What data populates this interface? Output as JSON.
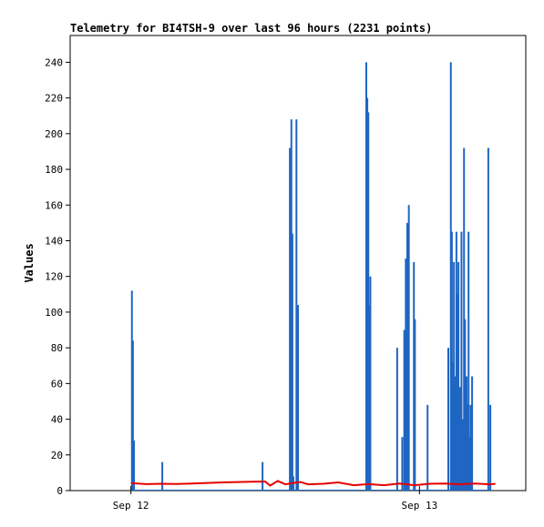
{
  "chart_data": {
    "type": "line",
    "title": "Telemetry for BI4TSH-9 over last 96 hours (2231 points)",
    "ylabel": "Values",
    "xlabel": "",
    "ylim": [
      0,
      255
    ],
    "yticks": [
      0,
      20,
      40,
      60,
      80,
      100,
      120,
      140,
      160,
      180,
      200,
      220,
      240
    ],
    "xlim": [
      -12,
      78
    ],
    "x_unit": "hours since Sep 12 00:00",
    "xticks": [
      {
        "x": 0,
        "label": "Sep 12"
      },
      {
        "x": 57,
        "label": "Sep 13"
      }
    ],
    "grid": false,
    "legend": "none",
    "series": [
      {
        "color": "#1f66c2",
        "style": "spikes",
        "points": [
          [
            0.2,
            112
          ],
          [
            0.4,
            84
          ],
          [
            0.6,
            28
          ],
          [
            6.2,
            16
          ],
          [
            26.0,
            16
          ],
          [
            31.4,
            192
          ],
          [
            31.7,
            208
          ],
          [
            31.9,
            144
          ],
          [
            32.1,
            8
          ],
          [
            32.7,
            208
          ],
          [
            33.0,
            104
          ],
          [
            46.5,
            240
          ],
          [
            46.7,
            220
          ],
          [
            46.9,
            212
          ],
          [
            47.1,
            104
          ],
          [
            47.3,
            120
          ],
          [
            52.6,
            80
          ],
          [
            53.6,
            30
          ],
          [
            54.0,
            90
          ],
          [
            54.3,
            130
          ],
          [
            54.6,
            150
          ],
          [
            54.9,
            160
          ],
          [
            55.9,
            128
          ],
          [
            56.1,
            96
          ],
          [
            58.6,
            48
          ],
          [
            62.7,
            80
          ],
          [
            63.2,
            240
          ],
          [
            63.4,
            145
          ],
          [
            63.6,
            72
          ],
          [
            63.8,
            128
          ],
          [
            64.0,
            64
          ],
          [
            64.3,
            145
          ],
          [
            64.5,
            110
          ],
          [
            64.7,
            128
          ],
          [
            65.0,
            58
          ],
          [
            65.3,
            145
          ],
          [
            65.6,
            40
          ],
          [
            65.8,
            192
          ],
          [
            66.0,
            96
          ],
          [
            66.3,
            64
          ],
          [
            66.5,
            48
          ],
          [
            66.7,
            145
          ],
          [
            66.9,
            30
          ],
          [
            67.1,
            48
          ],
          [
            67.4,
            64
          ],
          [
            70.6,
            192
          ],
          [
            71.0,
            48
          ]
        ]
      },
      {
        "color": "#e60000",
        "style": "line",
        "points": [
          [
            0,
            4.2
          ],
          [
            3,
            3.6
          ],
          [
            6,
            3.8
          ],
          [
            9,
            3.7
          ],
          [
            12,
            4.0
          ],
          [
            15,
            4.3
          ],
          [
            18,
            4.6
          ],
          [
            21,
            4.8
          ],
          [
            24,
            5.0
          ],
          [
            26.5,
            5.1
          ],
          [
            27.5,
            2.8
          ],
          [
            29,
            5.4
          ],
          [
            30.5,
            3.5
          ],
          [
            32,
            4.3
          ],
          [
            33.5,
            4.8
          ],
          [
            35,
            3.5
          ],
          [
            38,
            3.8
          ],
          [
            41,
            4.6
          ],
          [
            44,
            3.0
          ],
          [
            47,
            3.6
          ],
          [
            50,
            3.0
          ],
          [
            53,
            4.0
          ],
          [
            56,
            3.0
          ],
          [
            59,
            3.8
          ],
          [
            62,
            4.0
          ],
          [
            65,
            3.5
          ],
          [
            68,
            4.0
          ],
          [
            71,
            3.5
          ],
          [
            72,
            3.8
          ]
        ]
      }
    ]
  }
}
